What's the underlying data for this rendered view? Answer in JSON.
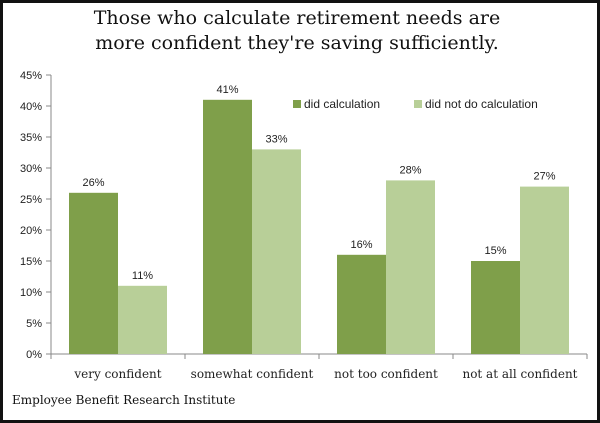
{
  "title_line1": "Those who calculate retirement needs are",
  "title_line2": "more confident they're saving sufficiently.",
  "source": "Employee Benefit Research Institute",
  "colors": {
    "did_calculation": "#7f9f4a",
    "did_not_do_calculation": "#b8cf98",
    "axis": "#888888"
  },
  "chart_data": {
    "type": "bar",
    "categories": [
      "very confident",
      "somewhat confident",
      "not too confident",
      "not at all confident"
    ],
    "series": [
      {
        "name": "did calculation",
        "values": [
          26,
          41,
          16,
          15
        ]
      },
      {
        "name": "did not do calculation",
        "values": [
          11,
          33,
          28,
          27
        ]
      }
    ],
    "value_labels": [
      [
        "26%",
        "41%",
        "16%",
        "15%"
      ],
      [
        "11%",
        "33%",
        "28%",
        "27%"
      ]
    ],
    "yticks": [
      "0%",
      "5%",
      "10%",
      "15%",
      "20%",
      "25%",
      "30%",
      "35%",
      "40%",
      "45%"
    ],
    "ylim": [
      0,
      45
    ],
    "grid": false,
    "legend_position": "top-right"
  }
}
